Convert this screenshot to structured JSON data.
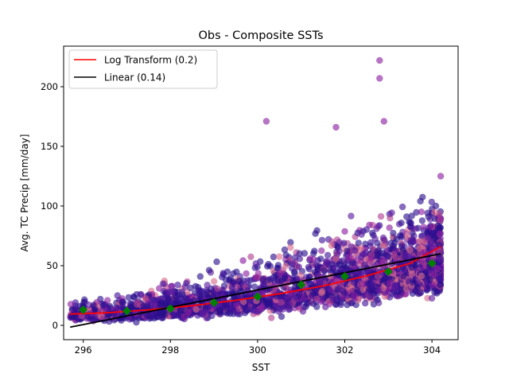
{
  "chart_data": {
    "type": "scatter",
    "title": "Obs - Composite SSTs",
    "xlabel": "SST",
    "ylabel": "Avg. TC Precip [mm/day]",
    "xlim": [
      295.55,
      304.6
    ],
    "ylim": [
      -12,
      234
    ],
    "x_ticks": [
      296,
      298,
      300,
      302,
      304
    ],
    "y_ticks": [
      0,
      50,
      100,
      150,
      200
    ],
    "x_tick_labels": [
      "296",
      "298",
      "300",
      "302",
      "304"
    ],
    "y_tick_labels": [
      "0",
      "50",
      "100",
      "150",
      "200"
    ],
    "grid": false,
    "legend_position": "top-left",
    "colors": {
      "log_line": "#ff0000",
      "linear_line": "#000000",
      "binned_means": "#008000",
      "scatter_dark": "#2a0f8c",
      "scatter_mid": "#8a1fa0",
      "scatter_light": "#d86c8c"
    },
    "series": [
      {
        "name": "Log Transform (0.2)",
        "kind": "line",
        "color": "#ff0000",
        "x": [
          295.7,
          296.5,
          297.5,
          298.5,
          299.5,
          300.5,
          301.5,
          302.5,
          303.5,
          304.2
        ],
        "y": [
          9.5,
          10.5,
          13,
          16.5,
          21,
          26.5,
          33,
          41.5,
          52,
          66
        ]
      },
      {
        "name": "Linear (0.14)",
        "kind": "line",
        "color": "#000000",
        "x": [
          295.7,
          304.2
        ],
        "y": [
          -1.5,
          60
        ]
      },
      {
        "name": "",
        "kind": "markers",
        "marker": "diamond",
        "color": "#008000",
        "x": [
          296,
          297,
          298,
          299,
          300,
          301,
          302,
          303,
          304
        ],
        "y": [
          13,
          12,
          14,
          19,
          24,
          34,
          41,
          45,
          52
        ]
      }
    ],
    "scatter": {
      "n_points": 3200,
      "x_range": [
        295.7,
        304.2
      ],
      "notable_outliers": [
        {
          "x": 302.8,
          "y": 222
        },
        {
          "x": 302.8,
          "y": 207
        },
        {
          "x": 301.8,
          "y": 166
        },
        {
          "x": 302.9,
          "y": 171
        },
        {
          "x": 300.2,
          "y": 171
        },
        {
          "x": 304.2,
          "y": 125
        }
      ]
    },
    "legend": [
      {
        "label": "Log Transform (0.2)",
        "color": "#ff0000"
      },
      {
        "label": "Linear (0.14)",
        "color": "#000000"
      }
    ]
  }
}
